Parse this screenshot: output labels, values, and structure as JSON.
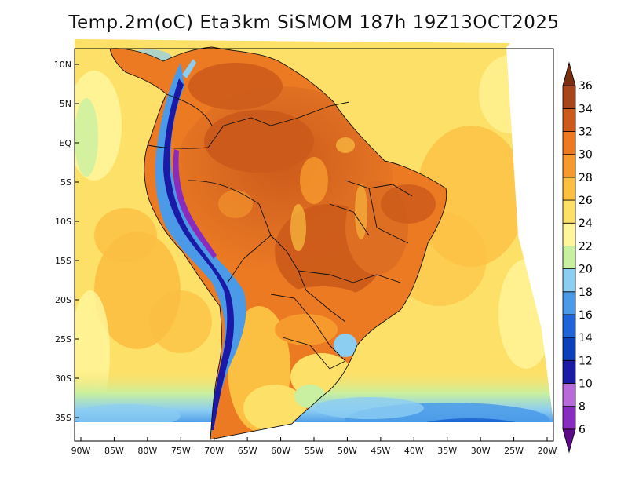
{
  "title": "Temp.2m(oC) Eta3km SiSMOM 187h 19Z13OCT2025",
  "map": {
    "lon_range": [
      -90,
      -20
    ],
    "lat_range": [
      -38,
      12
    ],
    "lon_ticks": [
      {
        "value": -90,
        "label": "90W"
      },
      {
        "value": -85,
        "label": "85W"
      },
      {
        "value": -80,
        "label": "80W"
      },
      {
        "value": -75,
        "label": "75W"
      },
      {
        "value": -70,
        "label": "70W"
      },
      {
        "value": -65,
        "label": "65W"
      },
      {
        "value": -60,
        "label": "60W"
      },
      {
        "value": -55,
        "label": "55W"
      },
      {
        "value": -50,
        "label": "50W"
      },
      {
        "value": -45,
        "label": "45W"
      },
      {
        "value": -40,
        "label": "40W"
      },
      {
        "value": -35,
        "label": "35W"
      },
      {
        "value": -30,
        "label": "30W"
      },
      {
        "value": -25,
        "label": "25W"
      },
      {
        "value": -20,
        "label": "20W"
      }
    ],
    "lat_ticks": [
      {
        "value": 10,
        "label": "10N"
      },
      {
        "value": 5,
        "label": "5N"
      },
      {
        "value": 0,
        "label": "EQ"
      },
      {
        "value": -5,
        "label": "5S"
      },
      {
        "value": -10,
        "label": "10S"
      },
      {
        "value": -15,
        "label": "15S"
      },
      {
        "value": -20,
        "label": "20S"
      },
      {
        "value": -25,
        "label": "25S"
      },
      {
        "value": -30,
        "label": "30S"
      },
      {
        "value": -35,
        "label": "35S"
      }
    ]
  },
  "colorbar": {
    "levels": [
      6,
      8,
      10,
      12,
      14,
      16,
      18,
      20,
      22,
      24,
      26,
      28,
      30,
      32,
      34,
      36
    ],
    "colors": [
      "#5c0a8a",
      "#8a2bbf",
      "#b86ad9",
      "#1a1aa6",
      "#0d3fb8",
      "#1e64d6",
      "#4a9ae8",
      "#8ccdf2",
      "#c8f0a0",
      "#fff59a",
      "#fde068",
      "#fbbf42",
      "#f79a2e",
      "#ec7a23",
      "#cc5a1a",
      "#a7461a",
      "#7a3010"
    ]
  }
}
